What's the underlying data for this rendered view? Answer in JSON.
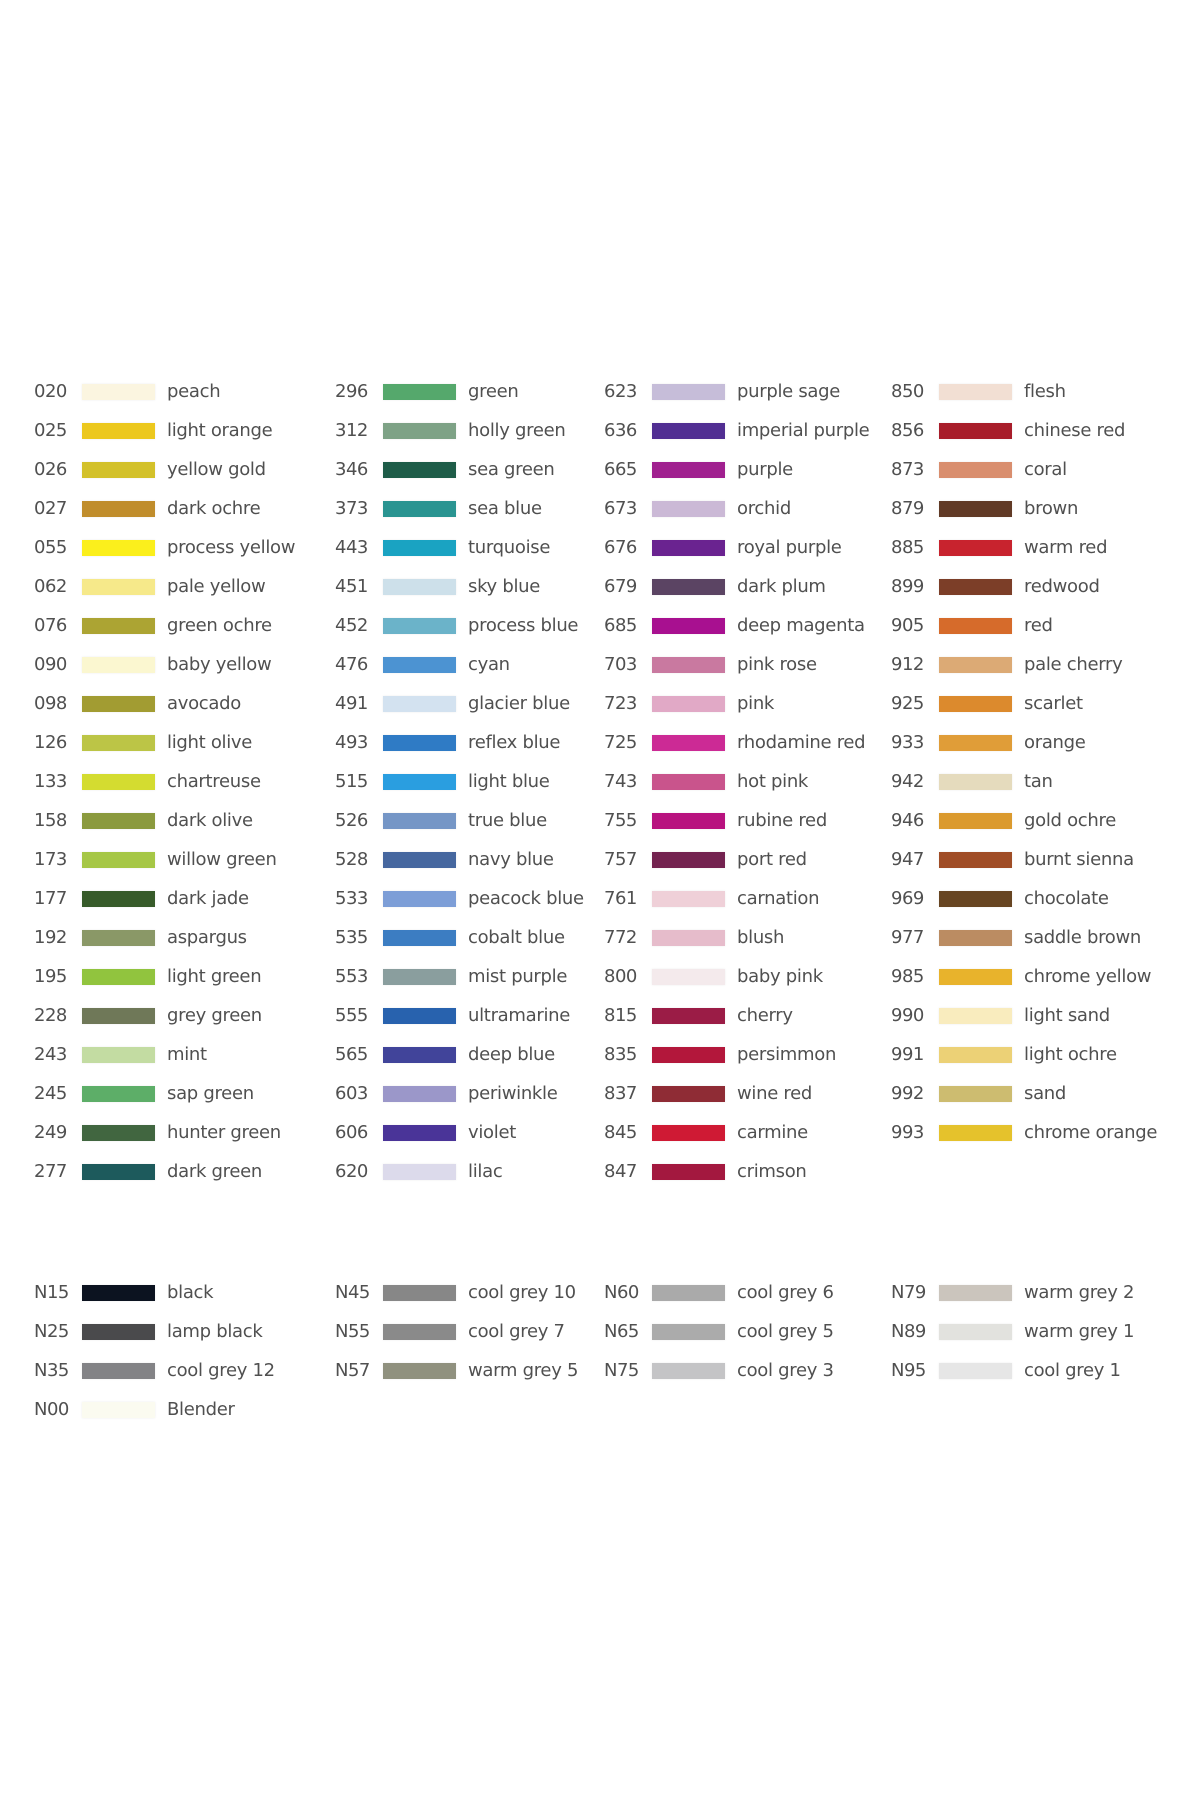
{
  "colors": {
    "columns": [
      [
        {
          "code": "020",
          "name": "peach",
          "color": "#fbf5e0"
        },
        {
          "code": "025",
          "name": "light orange",
          "color": "#ecc81e"
        },
        {
          "code": "026",
          "name": "yellow gold",
          "color": "#d3c12a"
        },
        {
          "code": "027",
          "name": "dark ochre",
          "color": "#c08d2c"
        },
        {
          "code": "055",
          "name": "process yellow",
          "color": "#fbef1c"
        },
        {
          "code": "062",
          "name": "pale yellow",
          "color": "#f6e98a"
        },
        {
          "code": "076",
          "name": "green ochre",
          "color": "#aca433"
        },
        {
          "code": "090",
          "name": "baby yellow",
          "color": "#fbf7d0"
        },
        {
          "code": "098",
          "name": "avocado",
          "color": "#a29c32"
        },
        {
          "code": "126",
          "name": "light olive",
          "color": "#bcc546"
        },
        {
          "code": "133",
          "name": "chartreuse",
          "color": "#d4dc30"
        },
        {
          "code": "158",
          "name": "dark olive",
          "color": "#8b9a3e"
        },
        {
          "code": "173",
          "name": "willow green",
          "color": "#a6c746"
        },
        {
          "code": "177",
          "name": "dark jade",
          "color": "#375b2a"
        },
        {
          "code": "192",
          "name": "aspargus",
          "color": "#8a9867"
        },
        {
          "code": "195",
          "name": "light green",
          "color": "#91c43e"
        },
        {
          "code": "228",
          "name": "grey green",
          "color": "#6f7858"
        },
        {
          "code": "243",
          "name": "mint",
          "color": "#c3dca2"
        },
        {
          "code": "245",
          "name": "sap green",
          "color": "#5dae68"
        },
        {
          "code": "249",
          "name": "hunter green",
          "color": "#416640"
        },
        {
          "code": "277",
          "name": "dark green",
          "color": "#1d5a5c"
        }
      ],
      [
        {
          "code": "296",
          "name": "green",
          "color": "#55a86c"
        },
        {
          "code": "312",
          "name": "holly green",
          "color": "#7ea286"
        },
        {
          "code": "346",
          "name": "sea green",
          "color": "#1e5c48"
        },
        {
          "code": "373",
          "name": "sea blue",
          "color": "#2a9491"
        },
        {
          "code": "443",
          "name": "turquoise",
          "color": "#1aa3c2"
        },
        {
          "code": "451",
          "name": "sky blue",
          "color": "#cde0ea"
        },
        {
          "code": "452",
          "name": "process blue",
          "color": "#6bb3c9"
        },
        {
          "code": "476",
          "name": "cyan",
          "color": "#4c93d2"
        },
        {
          "code": "491",
          "name": "glacier blue",
          "color": "#d3e2f0"
        },
        {
          "code": "493",
          "name": "reflex blue",
          "color": "#2f7bc5"
        },
        {
          "code": "515",
          "name": "light blue",
          "color": "#2a9ee0"
        },
        {
          "code": "526",
          "name": "true blue",
          "color": "#7596c6"
        },
        {
          "code": "528",
          "name": "navy blue",
          "color": "#46679f"
        },
        {
          "code": "533",
          "name": "peacock blue",
          "color": "#7d9ed7"
        },
        {
          "code": "535",
          "name": "cobalt blue",
          "color": "#3c7dc2"
        },
        {
          "code": "553",
          "name": "mist purple",
          "color": "#8a9e9e"
        },
        {
          "code": "555",
          "name": "ultramarine",
          "color": "#2862ae"
        },
        {
          "code": "565",
          "name": "deep blue",
          "color": "#41449a"
        },
        {
          "code": "603",
          "name": "periwinkle",
          "color": "#9b97c9"
        },
        {
          "code": "606",
          "name": "violet",
          "color": "#4a3498"
        },
        {
          "code": "620",
          "name": "lilac",
          "color": "#dcdaeb"
        }
      ],
      [
        {
          "code": "623",
          "name": "purple sage",
          "color": "#c6bdd9"
        },
        {
          "code": "636",
          "name": "imperial purple",
          "color": "#512e92"
        },
        {
          "code": "665",
          "name": "purple",
          "color": "#a0208f"
        },
        {
          "code": "673",
          "name": "orchid",
          "color": "#cbb9d6"
        },
        {
          "code": "676",
          "name": "royal purple",
          "color": "#6a2390"
        },
        {
          "code": "679",
          "name": "dark plum",
          "color": "#5b4463"
        },
        {
          "code": "685",
          "name": "deep magenta",
          "color": "#a81090"
        },
        {
          "code": "703",
          "name": "pink rose",
          "color": "#c979a0"
        },
        {
          "code": "723",
          "name": "pink",
          "color": "#e1a9c6"
        },
        {
          "code": "725",
          "name": "rhodamine red",
          "color": "#cc2a95"
        },
        {
          "code": "743",
          "name": "hot pink",
          "color": "#c9548c"
        },
        {
          "code": "755",
          "name": "rubine red",
          "color": "#b8127f"
        },
        {
          "code": "757",
          "name": "port red",
          "color": "#742350"
        },
        {
          "code": "761",
          "name": "carnation",
          "color": "#efd0d8"
        },
        {
          "code": "772",
          "name": "blush",
          "color": "#e6bccb"
        },
        {
          "code": "800",
          "name": "baby pink",
          "color": "#f4eaec"
        },
        {
          "code": "815",
          "name": "cherry",
          "color": "#9b1c46"
        },
        {
          "code": "835",
          "name": "persimmon",
          "color": "#b3173b"
        },
        {
          "code": "837",
          "name": "wine red",
          "color": "#8f2c35"
        },
        {
          "code": "845",
          "name": "carmine",
          "color": "#cf1a34"
        },
        {
          "code": "847",
          "name": "crimson",
          "color": "#a3183f"
        }
      ],
      [
        {
          "code": "850",
          "name": "flesh",
          "color": "#f2dfd3"
        },
        {
          "code": "856",
          "name": "chinese red",
          "color": "#a81d2a"
        },
        {
          "code": "873",
          "name": "coral",
          "color": "#d98e6e"
        },
        {
          "code": "879",
          "name": "brown",
          "color": "#613a26"
        },
        {
          "code": "885",
          "name": "warm red",
          "color": "#c8232e"
        },
        {
          "code": "899",
          "name": "redwood",
          "color": "#7c3e28"
        },
        {
          "code": "905",
          "name": "red",
          "color": "#d66b2b"
        },
        {
          "code": "912",
          "name": "pale cherry",
          "color": "#dcaa75"
        },
        {
          "code": "925",
          "name": "scarlet",
          "color": "#dc8a2d"
        },
        {
          "code": "933",
          "name": "orange",
          "color": "#e09d38"
        },
        {
          "code": "942",
          "name": "tan",
          "color": "#e5dbbd"
        },
        {
          "code": "946",
          "name": "gold ochre",
          "color": "#db9a2e"
        },
        {
          "code": "947",
          "name": "burnt sienna",
          "color": "#a04d26"
        },
        {
          "code": "969",
          "name": "chocolate",
          "color": "#674522"
        },
        {
          "code": "977",
          "name": "saddle brown",
          "color": "#bb8c62"
        },
        {
          "code": "985",
          "name": "chrome yellow",
          "color": "#e8b32c"
        },
        {
          "code": "990",
          "name": "light sand",
          "color": "#f9ecbe"
        },
        {
          "code": "991",
          "name": "light ochre",
          "color": "#ecd176"
        },
        {
          "code": "992",
          "name": "sand",
          "color": "#cdbc70"
        },
        {
          "code": "993",
          "name": "chrome orange",
          "color": "#e5c22c"
        }
      ]
    ]
  },
  "greys": {
    "columns": [
      [
        {
          "code": "N15",
          "name": "black",
          "color": "#0c1320"
        },
        {
          "code": "N25",
          "name": "lamp black",
          "color": "#4a4a4c"
        },
        {
          "code": "N35",
          "name": "cool grey 12",
          "color": "#838386"
        },
        {
          "code": "N00",
          "name": "Blender",
          "color": "#fbfbf0"
        }
      ],
      [
        {
          "code": "N45",
          "name": "cool grey 10",
          "color": "#878787"
        },
        {
          "code": "N55",
          "name": "cool grey 7",
          "color": "#8a8a8a"
        },
        {
          "code": "N57",
          "name": "warm grey 5",
          "color": "#90917f"
        }
      ],
      [
        {
          "code": "N60",
          "name": "cool grey 6",
          "color": "#aaaaaa"
        },
        {
          "code": "N65",
          "name": "cool grey 5",
          "color": "#ababab"
        },
        {
          "code": "N75",
          "name": "cool grey 3",
          "color": "#c4c4c6"
        }
      ],
      [
        {
          "code": "N79",
          "name": "warm grey 2",
          "color": "#cbc5bd"
        },
        {
          "code": "N89",
          "name": "warm grey 1",
          "color": "#e2e2de"
        },
        {
          "code": "N95",
          "name": "cool grey 1",
          "color": "#e6e6e6"
        }
      ]
    ]
  }
}
